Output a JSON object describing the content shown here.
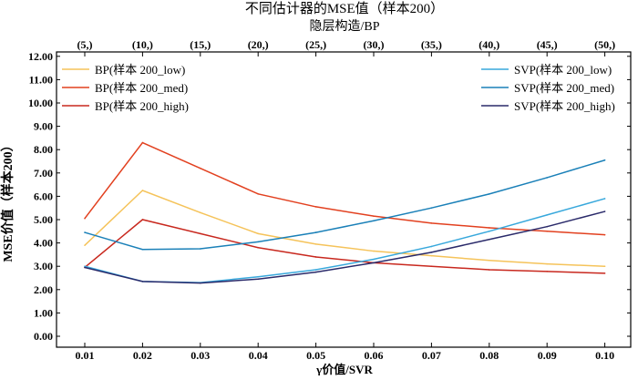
{
  "chart_data": {
    "type": "line",
    "title": "不同估计器的MSE值（样本200）",
    "top_xlabel": "隐层构造/BP",
    "xlabel": "γ价值/SVR",
    "ylabel": "MSE价值（样本200）",
    "x": [
      0.01,
      0.02,
      0.03,
      0.04,
      0.05,
      0.06,
      0.07,
      0.08,
      0.09,
      0.1
    ],
    "x_tick_labels": [
      "0.01",
      "0.02",
      "0.03",
      "0.04",
      "0.05",
      "0.06",
      "0.07",
      "0.08",
      "0.09",
      "0.10"
    ],
    "top_tick_labels": [
      "(5,)",
      "(10,)",
      "(15,)",
      "(20,)",
      "(25,)",
      "(30,)",
      "(35,)",
      "(40,)",
      "(45,)",
      "(50,)"
    ],
    "ylim": [
      0,
      12
    ],
    "y_tick_labels": [
      "0.00",
      "1.00",
      "2.00",
      "3.00",
      "4.00",
      "5.00",
      "6.00",
      "7.00",
      "8.00",
      "9.00",
      "10.00",
      "11.00",
      "12.00"
    ],
    "grid": false,
    "series": [
      {
        "name": "BP(样本 200_low)",
        "color": "#f5c35a",
        "legend": "top-left",
        "values": [
          3.9,
          6.25,
          5.3,
          4.4,
          3.95,
          3.65,
          3.45,
          3.25,
          3.1,
          3.0
        ]
      },
      {
        "name": "BP(样本 200_med)",
        "color": "#e2401f",
        "legend": "top-left",
        "values": [
          5.05,
          8.3,
          7.2,
          6.1,
          5.55,
          5.15,
          4.85,
          4.65,
          4.5,
          4.35
        ]
      },
      {
        "name": "BP(样本 200_high)",
        "color": "#c8281e",
        "legend": "top-left",
        "values": [
          2.95,
          5.0,
          4.4,
          3.8,
          3.4,
          3.15,
          3.0,
          2.85,
          2.78,
          2.7
        ]
      },
      {
        "name": "SVP(样本 200_low)",
        "color": "#38a8dc",
        "legend": "top-right",
        "values": [
          3.0,
          2.35,
          2.3,
          2.55,
          2.85,
          3.3,
          3.85,
          4.5,
          5.2,
          5.9
        ]
      },
      {
        "name": "SVP(样本 200_med)",
        "color": "#1a80b8",
        "legend": "top-right",
        "values": [
          4.45,
          3.72,
          3.75,
          4.05,
          4.45,
          4.95,
          5.5,
          6.1,
          6.8,
          7.55
        ]
      },
      {
        "name": "SVP(样本 200_high)",
        "color": "#2a2a6a",
        "legend": "top-right",
        "values": [
          2.95,
          2.35,
          2.28,
          2.45,
          2.75,
          3.15,
          3.6,
          4.15,
          4.7,
          5.35
        ]
      }
    ]
  }
}
